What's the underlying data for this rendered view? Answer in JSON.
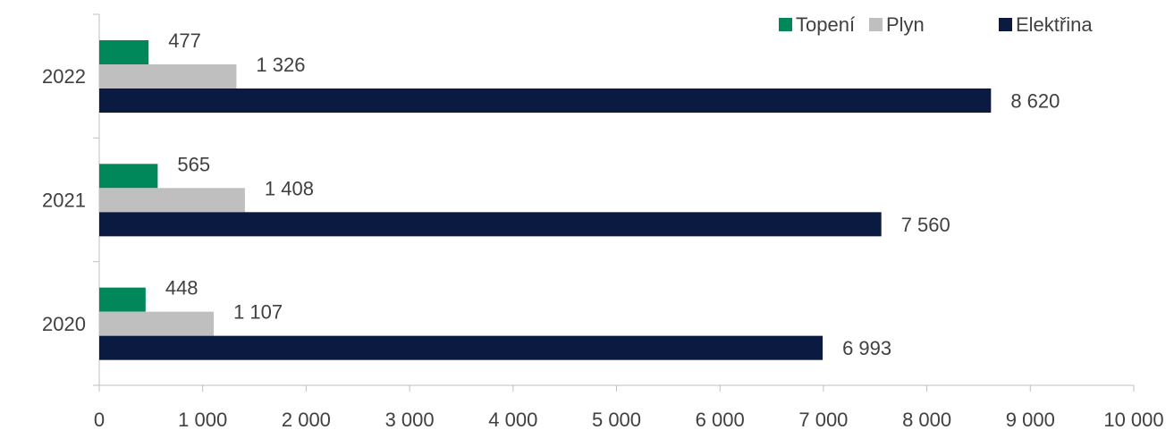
{
  "chart_data": {
    "type": "bar",
    "orientation": "horizontal",
    "categories": [
      "2022",
      "2021",
      "2020"
    ],
    "series": [
      {
        "name": "Topení",
        "color": "#00875A",
        "values": [
          477,
          565,
          448
        ],
        "labels": [
          "477",
          "565",
          "448"
        ]
      },
      {
        "name": "Plyn",
        "color": "#BFBFBF",
        "values": [
          1326,
          1408,
          1107
        ],
        "labels": [
          "1 326",
          "1 408",
          "1 107"
        ]
      },
      {
        "name": "Elektřina",
        "color": "#0A1A40",
        "values": [
          8620,
          7560,
          6993
        ],
        "labels": [
          "8 620",
          "7 560",
          "6 993"
        ]
      }
    ],
    "xlim": [
      0,
      10000
    ],
    "x_ticks": [
      0,
      1000,
      2000,
      3000,
      4000,
      5000,
      6000,
      7000,
      8000,
      9000,
      10000
    ],
    "x_tick_labels": [
      "0",
      "1 000",
      "2 000",
      "3 000",
      "4 000",
      "5 000",
      "6 000",
      "7 000",
      "8 000",
      "9 000",
      "10 000"
    ],
    "grid": false,
    "legend_position": "top-right",
    "title": "",
    "xlabel": "",
    "ylabel": ""
  }
}
